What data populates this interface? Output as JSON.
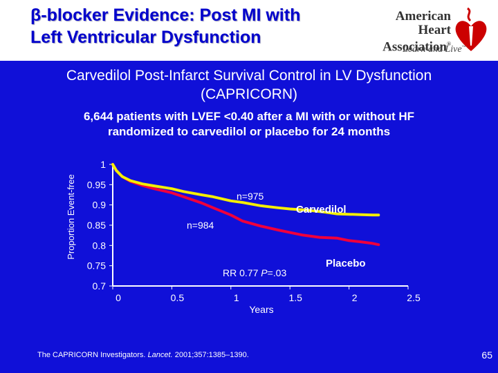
{
  "title": {
    "line1_symbol": "β",
    "line1_text": "-blocker Evidence: Post MI with",
    "line2": "Left Ventricular Dysfunction"
  },
  "logo": {
    "line1": "American Heart",
    "line2": "Association",
    "registered_mark": "®",
    "tagline": "Learn and Live",
    "tagline_mark": "™"
  },
  "subtitle": {
    "line1": "Carvedilol Post-Infarct Survival Control in LV Dysfunction",
    "line2": "(CAPRICORN)"
  },
  "description": {
    "line1": "6,644 patients with LVEF <0.40 after a MI with or without HF",
    "line2": "randomized to carvedilol or placebo for 24 months"
  },
  "citation": {
    "authors": "The CAPRICORN Investigators.",
    "journal": "Lancet.",
    "details": "2001;357:1385–1390."
  },
  "page_number": "65",
  "colors": {
    "background": "#1010d8",
    "carvedilol": "#f4ee00",
    "placebo": "#f0003c",
    "title": "#0000cc"
  },
  "chart_data": {
    "type": "line",
    "title": "",
    "xlabel": "Years",
    "ylabel": "Proportion Event-free",
    "xlim": [
      0,
      2.5
    ],
    "ylim": [
      0.7,
      1.0
    ],
    "xticks": [
      0,
      0.5,
      1,
      1.5,
      2,
      2.5
    ],
    "xtick_labels": [
      "0",
      "0.5",
      "1",
      "1.5",
      "2",
      "2.5"
    ],
    "yticks": [
      1.0,
      0.95,
      0.9,
      0.85,
      0.8,
      0.75,
      0.7
    ],
    "ytick_labels": [
      "1",
      "0.95",
      "0.9",
      "0.85",
      "0.8",
      "0.75",
      "0.7"
    ],
    "series": [
      {
        "name": "Carvedilol",
        "x": [
          0,
          0.03,
          0.08,
          0.15,
          0.25,
          0.35,
          0.5,
          0.6,
          0.75,
          0.85,
          1.0,
          1.1,
          1.25,
          1.4,
          1.5,
          1.65,
          1.8,
          1.9,
          2.0,
          2.1,
          2.2,
          2.25
        ],
        "y": [
          1.0,
          0.985,
          0.97,
          0.96,
          0.952,
          0.947,
          0.94,
          0.933,
          0.925,
          0.92,
          0.91,
          0.906,
          0.898,
          0.893,
          0.89,
          0.887,
          0.882,
          0.878,
          0.877,
          0.876,
          0.875,
          0.875
        ]
      },
      {
        "name": "Placebo",
        "x": [
          0,
          0.03,
          0.08,
          0.15,
          0.25,
          0.35,
          0.5,
          0.6,
          0.75,
          0.85,
          1.0,
          1.1,
          1.25,
          1.4,
          1.5,
          1.6,
          1.75,
          1.9,
          2.0,
          2.1,
          2.2,
          2.25
        ],
        "y": [
          1.0,
          0.985,
          0.97,
          0.958,
          0.948,
          0.94,
          0.93,
          0.92,
          0.905,
          0.893,
          0.875,
          0.86,
          0.848,
          0.838,
          0.832,
          0.826,
          0.82,
          0.818,
          0.812,
          0.809,
          0.805,
          0.802
        ]
      }
    ],
    "annotations": {
      "carvedilol_label": "Carvedilol",
      "placebo_label": "Placebo",
      "n_carvedilol": "n=975",
      "n_placebo": "n=984",
      "rr_text": "RR 0.77",
      "p_label": "P",
      "p_value": "=.03"
    }
  }
}
